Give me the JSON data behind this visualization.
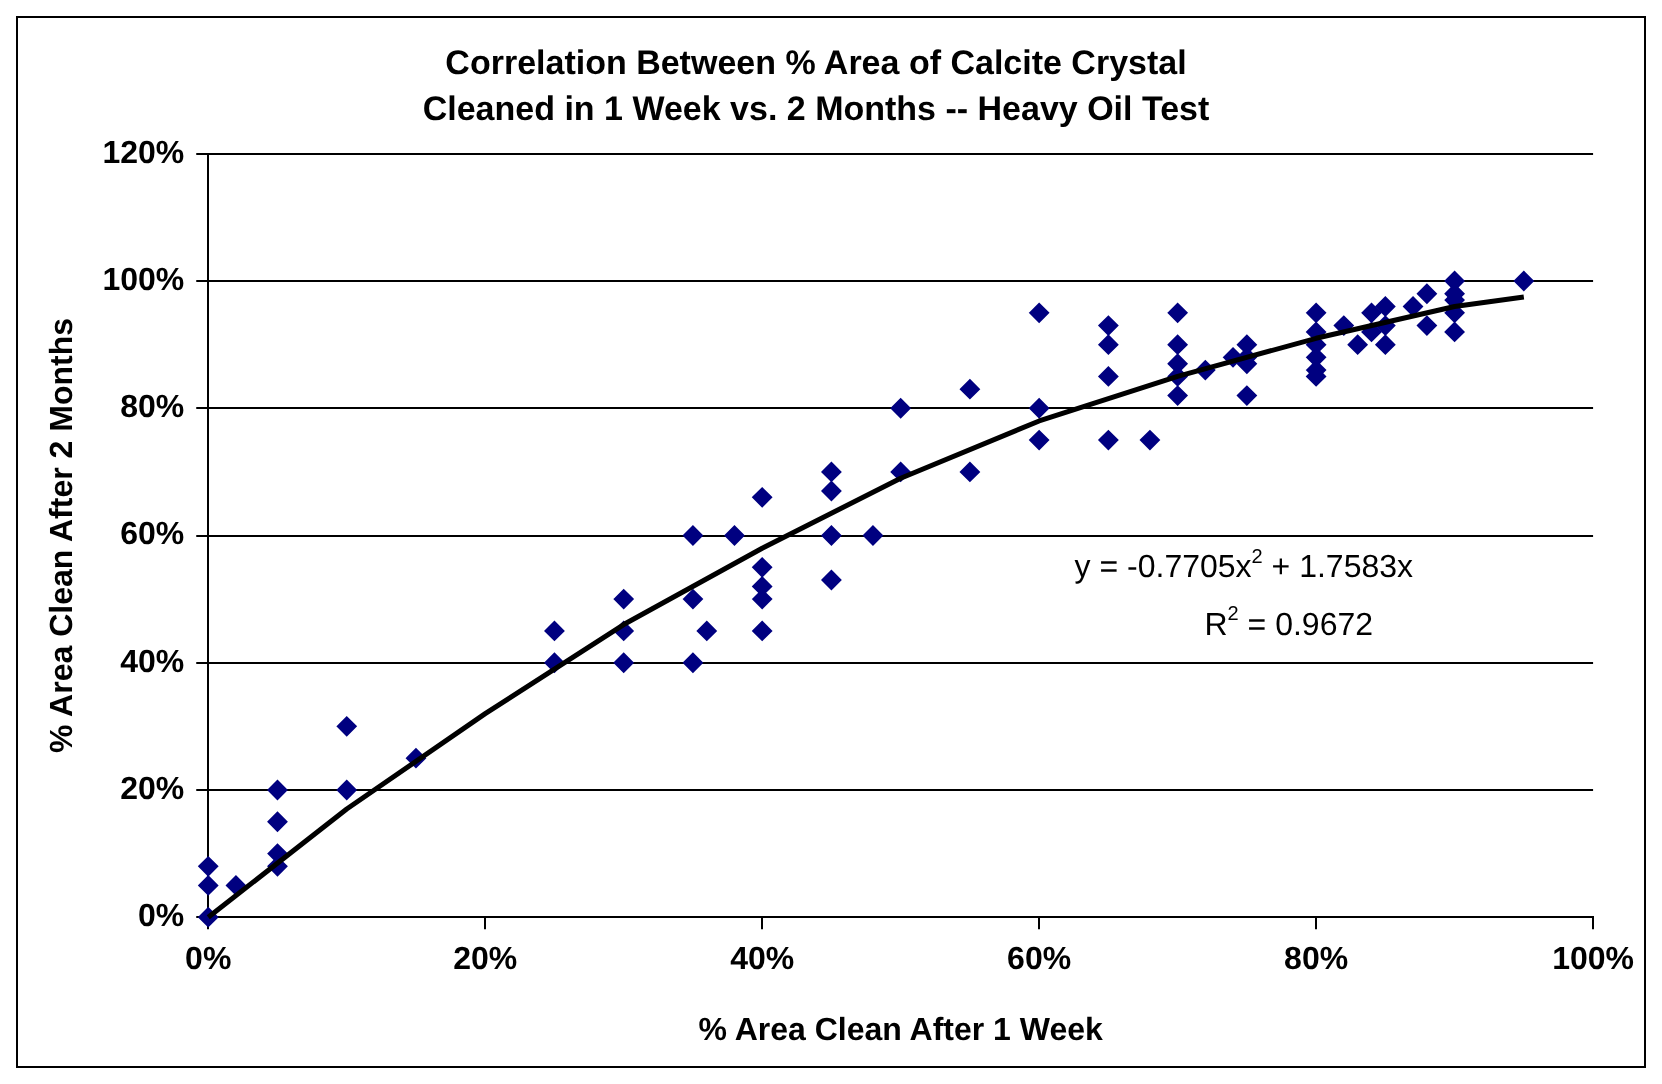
{
  "chart_data": {
    "type": "scatter",
    "title": "Correlation Between % Area of Calcite Crystal Cleaned in 1 Week vs. 2 Months -- Heavy Oil Test",
    "xlabel": "% Area Clean After 1 Week",
    "ylabel": "% Area Clean After 2 Months",
    "xlim": [
      0,
      100
    ],
    "ylim": [
      0,
      120
    ],
    "xticks": [
      {
        "value": 0,
        "label": "0%"
      },
      {
        "value": 20,
        "label": "20%"
      },
      {
        "value": 40,
        "label": "40%"
      },
      {
        "value": 60,
        "label": "60%"
      },
      {
        "value": 80,
        "label": "80%"
      },
      {
        "value": 100,
        "label": "100%"
      }
    ],
    "yticks": [
      {
        "value": 0,
        "label": "0%"
      },
      {
        "value": 20,
        "label": "20%"
      },
      {
        "value": 40,
        "label": "40%"
      },
      {
        "value": 60,
        "label": "60%"
      },
      {
        "value": 80,
        "label": "80%"
      },
      {
        "value": 100,
        "label": "100%"
      },
      {
        "value": 120,
        "label": "120%"
      }
    ],
    "grid": "y",
    "legend": false,
    "marker": "diamond",
    "annotations": [
      "y = -0.7705x$^{2}$ + 1.7583x",
      "R$^{2}$ = 0.9672"
    ],
    "series": [
      {
        "type": "scatter",
        "color": "#000080",
        "x": [
          0,
          0,
          0,
          2,
          5,
          5,
          5,
          5,
          10,
          10,
          15,
          25,
          25,
          30,
          30,
          30,
          35,
          35,
          35,
          36,
          38,
          40,
          40,
          40,
          40,
          40,
          45,
          45,
          45,
          45,
          48,
          50,
          50,
          55,
          55,
          60,
          60,
          60,
          65,
          65,
          65,
          65,
          68,
          70,
          70,
          70,
          70,
          70,
          72,
          74,
          75,
          75,
          75,
          75,
          80,
          80,
          80,
          80,
          80,
          80,
          82,
          83,
          84,
          84,
          85,
          85,
          85,
          87,
          88,
          88,
          90,
          90,
          90,
          90,
          90,
          95
        ],
        "values": [
          0,
          5,
          8,
          5,
          8,
          10,
          15,
          20,
          20,
          30,
          25,
          40,
          45,
          40,
          45,
          50,
          40,
          50,
          60,
          45,
          60,
          45,
          50,
          52,
          55,
          66,
          53,
          60,
          67,
          70,
          60,
          70,
          80,
          70,
          83,
          75,
          80,
          95,
          75,
          85,
          90,
          93,
          75,
          82,
          85,
          87,
          90,
          95,
          86,
          88,
          82,
          87,
          88,
          90,
          85,
          86,
          88,
          90,
          92,
          95,
          93,
          90,
          92,
          95,
          90,
          93,
          96,
          96,
          93,
          98,
          92,
          95,
          97,
          98,
          100,
          100
        ]
      },
      {
        "type": "line",
        "color": "#000000",
        "marker": "none",
        "line_style": "solid",
        "x": [
          0,
          10,
          20,
          30,
          40,
          50,
          60,
          70,
          80,
          90,
          95
        ],
        "values": [
          0,
          17,
          32,
          46,
          58,
          69,
          78,
          85,
          91,
          96,
          97.5
        ]
      }
    ]
  }
}
